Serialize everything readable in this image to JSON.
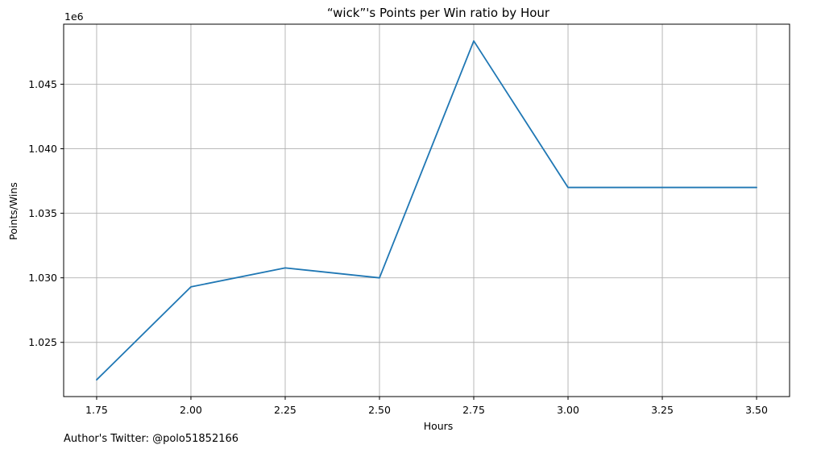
{
  "chart_data": {
    "type": "line",
    "title": "“wick”'s Points per Win ratio by Hour",
    "xlabel": "Hours",
    "ylabel": "Points/Wins",
    "y_scale_note": "1e6",
    "x": [
      1.75,
      2.0,
      2.25,
      2.5,
      2.75,
      3.0,
      3.25,
      3.5
    ],
    "series": [
      {
        "values": [
          1022100,
          1029300,
          1030770,
          1030000,
          1048350,
          1037000,
          1037000,
          1037000
        ]
      }
    ],
    "xlim": [
      1.6625,
      3.5875
    ],
    "ylim": [
      1020800,
      1049650
    ],
    "x_ticks": [
      1.75,
      2.0,
      2.25,
      2.5,
      2.75,
      3.0,
      3.25,
      3.5
    ],
    "x_tick_labels": [
      "1.75",
      "2.00",
      "2.25",
      "2.50",
      "2.75",
      "3.00",
      "3.25",
      "3.50"
    ],
    "y_ticks": [
      1025000,
      1030000,
      1035000,
      1040000,
      1045000
    ],
    "y_tick_labels": [
      "1.025",
      "1.030",
      "1.035",
      "1.040",
      "1.045"
    ],
    "grid": true,
    "line_color": "#1f77b4",
    "grid_color": "#b0b0b0"
  },
  "footer": {
    "credit": "Author's Twitter: @polo51852166"
  }
}
